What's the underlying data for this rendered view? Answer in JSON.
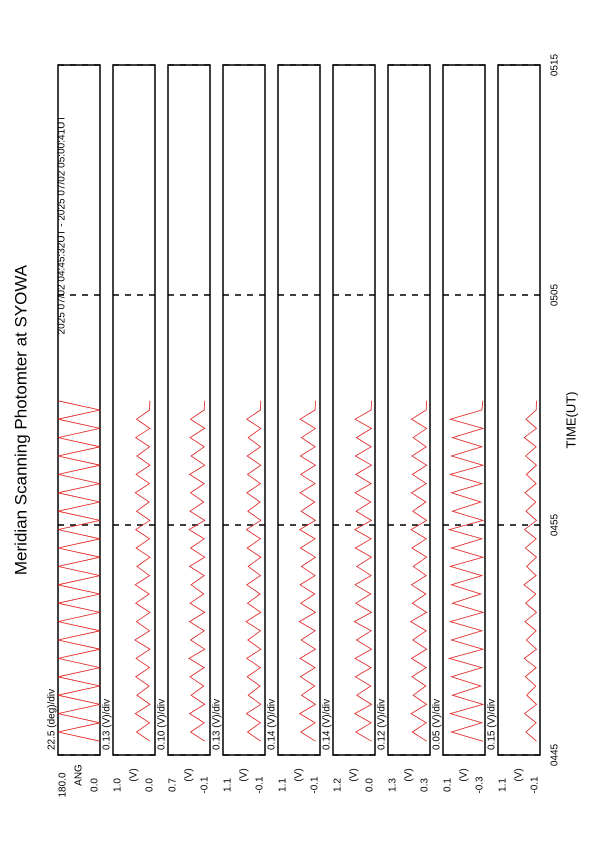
{
  "chart_data": {
    "type": "line",
    "title": "Meridian Scanning Photomter at SYOWA",
    "subtitle": "2025 07/02 04:45:32UT - 2025 07/02 05:00:41UT",
    "xlabel": "TIME(UT)",
    "xlim": [
      0,
      30
    ],
    "xticks": [
      {
        "value": 0,
        "label": "0445"
      },
      {
        "value": 10,
        "label": "0455"
      },
      {
        "value": 20,
        "label": "0505"
      },
      {
        "value": 30,
        "label": "0515"
      }
    ],
    "color": "#e02020",
    "x": [
      0.6,
      1.0,
      1.4,
      1.8,
      2.2,
      2.6,
      3.0,
      3.4,
      3.8,
      4.2,
      4.6,
      5.0,
      5.4,
      5.8,
      6.2,
      6.6,
      7.0,
      7.4,
      7.8,
      8.2,
      8.6,
      9.0,
      9.4,
      9.8,
      10.2,
      10.6,
      11.0,
      11.4,
      11.8,
      12.2,
      12.6,
      13.0,
      13.4,
      13.8,
      14.2,
      14.6,
      15.0,
      15.4
    ],
    "panels": [
      {
        "ylabel": "ANG",
        "scale": "22.5 (deg)/div",
        "ylim": [
          0,
          180
        ],
        "yticks": [
          {
            "value": 0,
            "label": "0.0"
          },
          {
            "value": 180,
            "label": "180.0"
          }
        ],
        "values": [
          0,
          180,
          0,
          180,
          0,
          180,
          0,
          180,
          0,
          180,
          0,
          180,
          0,
          180,
          0,
          180,
          0,
          180,
          0,
          180,
          0,
          180,
          0,
          180,
          0,
          180,
          0,
          180,
          0,
          180,
          0,
          180,
          0,
          180,
          0,
          180,
          0,
          180
        ]
      },
      {
        "ylabel": "(V)",
        "scale": "0.13 (V)/div",
        "ylim": [
          0,
          1
        ],
        "yticks": [
          {
            "value": 0,
            "label": "0.0"
          },
          {
            "value": 1,
            "label": "1.0"
          }
        ],
        "values": [
          0.12,
          0.44,
          0.13,
          0.47,
          0.12,
          0.43,
          0.14,
          0.46,
          0.13,
          0.45,
          0.12,
          0.48,
          0.13,
          0.44,
          0.12,
          0.46,
          0.14,
          0.47,
          0.13,
          0.43,
          0.12,
          0.45,
          0.13,
          0.46,
          0.12,
          0.44,
          0.14,
          0.47,
          0.13,
          0.45,
          0.12,
          0.43,
          0.13,
          0.46,
          0.12,
          0.44,
          0.13,
          0.12
        ]
      },
      {
        "ylabel": "(V)",
        "scale": "0.10 (V)/div",
        "ylim": [
          -0.1,
          0.7
        ],
        "yticks": [
          {
            "value": -0.1,
            "label": "-0.1"
          },
          {
            "value": 0.7,
            "label": "0.7"
          }
        ],
        "values": [
          0.0,
          0.27,
          0.01,
          0.29,
          0.0,
          0.26,
          0.02,
          0.28,
          0.01,
          0.3,
          0.0,
          0.27,
          0.01,
          0.29,
          0.0,
          0.28,
          0.02,
          0.26,
          0.01,
          0.29,
          0.0,
          0.27,
          0.01,
          0.3,
          0.0,
          0.28,
          0.02,
          0.27,
          0.01,
          0.29,
          0.0,
          0.26,
          0.01,
          0.28,
          0.0,
          0.27,
          0.01,
          0.0
        ]
      },
      {
        "ylabel": "(V)",
        "scale": "0.13 (V)/div",
        "ylim": [
          -0.1,
          1.1
        ],
        "yticks": [
          {
            "value": -0.1,
            "label": "-0.1"
          },
          {
            "value": 1.1,
            "label": "1.1"
          }
        ],
        "values": [
          0.02,
          0.4,
          0.03,
          0.43,
          0.02,
          0.38,
          0.04,
          0.41,
          0.03,
          0.42,
          0.02,
          0.39,
          0.03,
          0.44,
          0.02,
          0.4,
          0.04,
          0.42,
          0.03,
          0.38,
          0.02,
          0.41,
          0.03,
          0.43,
          0.02,
          0.39,
          0.04,
          0.42,
          0.03,
          0.4,
          0.02,
          0.41,
          0.03,
          0.38,
          0.02,
          0.42,
          0.03,
          0.02
        ]
      },
      {
        "ylabel": "(V)",
        "scale": "0.14 (V)/div",
        "ylim": [
          -0.1,
          1.1
        ],
        "yticks": [
          {
            "value": -0.1,
            "label": "-0.1"
          },
          {
            "value": 1.1,
            "label": "1.1"
          }
        ],
        "values": [
          0.03,
          0.45,
          0.04,
          0.48,
          0.03,
          0.43,
          0.05,
          0.46,
          0.04,
          0.47,
          0.03,
          0.44,
          0.04,
          0.49,
          0.03,
          0.45,
          0.05,
          0.47,
          0.04,
          0.43,
          0.03,
          0.46,
          0.04,
          0.48,
          0.03,
          0.44,
          0.05,
          0.47,
          0.04,
          0.45,
          0.03,
          0.46,
          0.04,
          0.43,
          0.03,
          0.47,
          0.04,
          0.03
        ]
      },
      {
        "ylabel": "(V)",
        "scale": "0.14 (V)/div",
        "ylim": [
          0,
          1.2
        ],
        "yticks": [
          {
            "value": 0,
            "label": "0.0"
          },
          {
            "value": 1.2,
            "label": "1.2"
          }
        ],
        "values": [
          0.1,
          0.55,
          0.11,
          0.58,
          0.1,
          0.52,
          0.12,
          0.56,
          0.11,
          0.57,
          0.1,
          0.53,
          0.11,
          0.59,
          0.1,
          0.55,
          0.12,
          0.57,
          0.11,
          0.52,
          0.1,
          0.56,
          0.11,
          0.58,
          0.1,
          0.54,
          0.12,
          0.57,
          0.11,
          0.55,
          0.1,
          0.56,
          0.11,
          0.53,
          0.1,
          0.57,
          0.11,
          0.1
        ]
      },
      {
        "ylabel": "(V)",
        "scale": "0.12 (V)/div",
        "ylim": [
          0.3,
          1.3
        ],
        "yticks": [
          {
            "value": 0.3,
            "label": "0.3"
          },
          {
            "value": 1.3,
            "label": "1.3"
          }
        ],
        "values": [
          0.38,
          0.72,
          0.39,
          0.75,
          0.38,
          0.7,
          0.4,
          0.73,
          0.39,
          0.74,
          0.38,
          0.71,
          0.39,
          0.76,
          0.38,
          0.72,
          0.4,
          0.74,
          0.39,
          0.7,
          0.38,
          0.73,
          0.39,
          0.75,
          0.38,
          0.71,
          0.4,
          0.74,
          0.39,
          0.72,
          0.38,
          0.73,
          0.39,
          0.7,
          0.38,
          0.74,
          0.39,
          0.38
        ]
      },
      {
        "ylabel": "(V)",
        "scale": "0.05 (V)/div",
        "ylim": [
          -0.3,
          0.1
        ],
        "yticks": [
          {
            "value": -0.3,
            "label": "-0.3"
          },
          {
            "value": 0.1,
            "label": "0.1"
          }
        ],
        "values": [
          -0.28,
          0.02,
          -0.27,
          0.03,
          -0.28,
          0.01,
          -0.26,
          0.02,
          -0.27,
          0.04,
          -0.28,
          0.02,
          -0.27,
          0.03,
          -0.28,
          0.01,
          -0.26,
          0.02,
          -0.27,
          0.03,
          -0.28,
          0.02,
          -0.27,
          0.04,
          -0.28,
          0.01,
          -0.26,
          0.02,
          -0.27,
          0.03,
          -0.28,
          0.02,
          -0.27,
          0.01,
          -0.28,
          0.03,
          -0.27,
          -0.28
        ]
      },
      {
        "ylabel": "(V)",
        "scale": "0.15 (V)/div",
        "ylim": [
          -0.1,
          1.1
        ],
        "yticks": [
          {
            "value": -0.1,
            "label": "-0.1"
          },
          {
            "value": 1.1,
            "label": "1.1"
          }
        ],
        "values": [
          0.0,
          0.3,
          0.01,
          0.34,
          0.0,
          0.28,
          0.02,
          0.32,
          0.01,
          0.35,
          0.0,
          0.29,
          0.01,
          0.33,
          0.0,
          0.31,
          0.02,
          0.36,
          0.01,
          0.28,
          0.0,
          0.32,
          0.01,
          0.34,
          0.0,
          0.3,
          0.02,
          0.33,
          0.01,
          0.29,
          0.0,
          0.31,
          0.01,
          0.35,
          0.0,
          0.3,
          0.01,
          0.0
        ]
      }
    ]
  }
}
